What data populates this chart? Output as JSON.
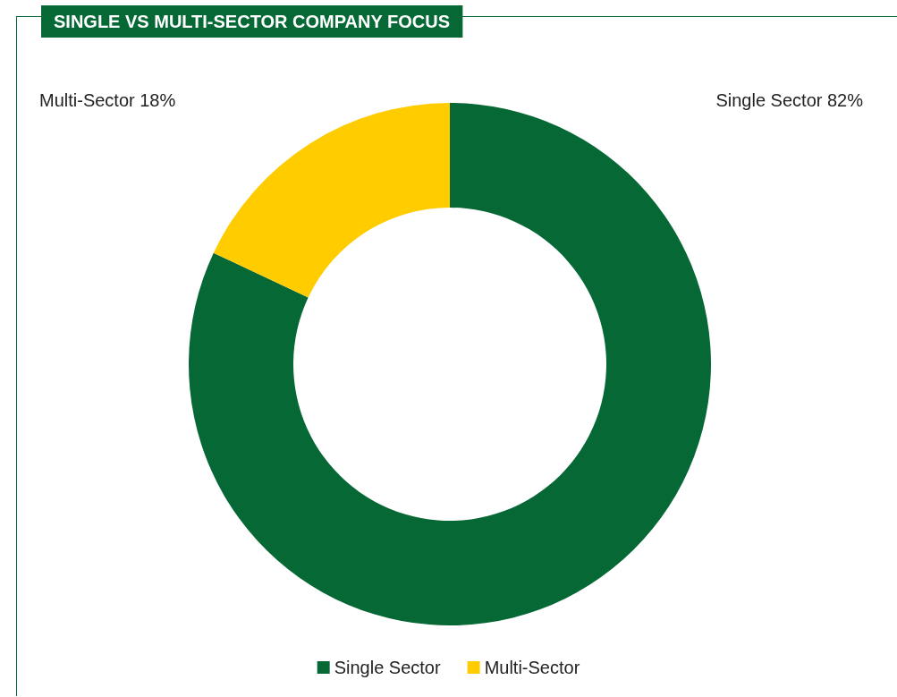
{
  "chart_data": {
    "type": "donut",
    "title": "SINGLE VS MULTI-SECTOR COMPANY FOCUS",
    "categories": [
      "Single Sector",
      "Multi-Sector"
    ],
    "values": [
      82,
      18
    ],
    "colors": [
      "#056835",
      "#ffcc00"
    ],
    "value_labels": [
      "82%",
      "18%"
    ],
    "legend": "bottom"
  }
}
